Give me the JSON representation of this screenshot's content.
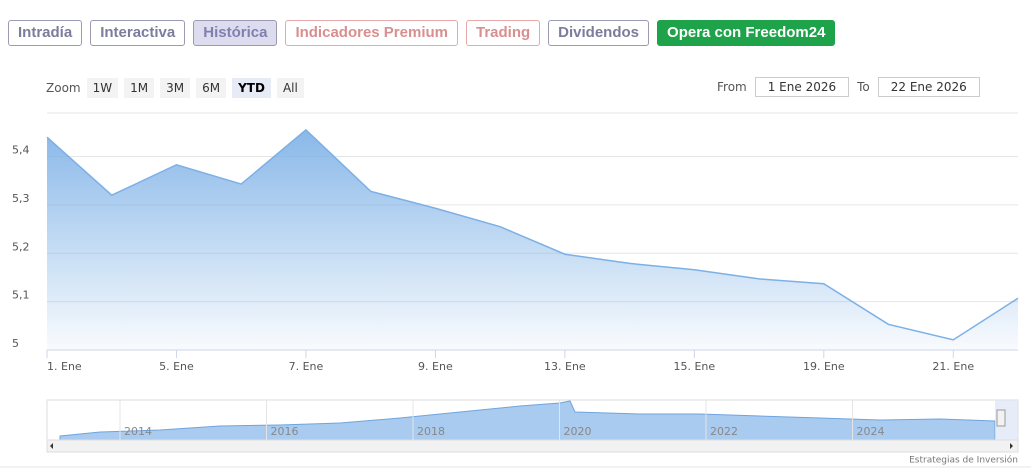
{
  "tabs": [
    "Intradía",
    "Interactiva",
    "Histórica",
    "Indicadores Premium",
    "Trading",
    "Dividendos",
    "Opera con Freedom24"
  ],
  "zoom": {
    "label": "Zoom",
    "buttons": [
      "1W",
      "1M",
      "3M",
      "6M",
      "YTD",
      "All"
    ]
  },
  "range": {
    "from_label": "From",
    "from": "1 Ene 2026",
    "to_label": "To",
    "to": "22 Ene 2026"
  },
  "navigator": {
    "labels": [
      "2014",
      "2016",
      "2018",
      "2020",
      "2022",
      "2024"
    ]
  },
  "credit": "Estrategias de Inversión",
  "chart_data": {
    "type": "area",
    "color": "#7cb0e6",
    "categories": [
      "1. Ene",
      null,
      "5. Ene",
      null,
      "7. Ene",
      null,
      "9. Ene",
      null,
      "13. Ene",
      null,
      "15. Ene",
      null,
      "19. Ene",
      null,
      "21. Ene",
      null
    ],
    "values": [
      5.44,
      5.32,
      5.383,
      5.343,
      5.455,
      5.328,
      5.293,
      5.255,
      5.198,
      5.179,
      5.166,
      5.147,
      5.137,
      5.053,
      5.021,
      5.107
    ],
    "ylim": [
      5,
      5.49
    ],
    "yticks": [
      5,
      {
        "value": 5.1,
        "label": "5,1"
      },
      {
        "value": 5.2,
        "label": "5,2"
      },
      {
        "value": 5.3,
        "label": "5,3"
      },
      {
        "value": 5.4,
        "label": "5,4"
      }
    ],
    "grid": true
  }
}
